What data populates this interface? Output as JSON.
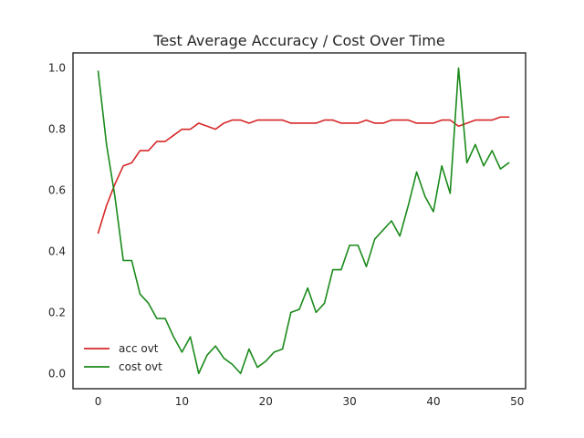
{
  "chart_data": {
    "type": "line",
    "title": "Test Average Accuracy / Cost Over Time",
    "xlabel": "",
    "ylabel": "",
    "xlim": [
      -3,
      51
    ],
    "ylim": [
      -0.05,
      1.05
    ],
    "xticks": [
      0,
      10,
      20,
      30,
      40,
      50
    ],
    "yticks": [
      0.0,
      0.2,
      0.4,
      0.6,
      0.8,
      1.0
    ],
    "grid": false,
    "legend": "lower-left",
    "x": [
      0,
      1,
      2,
      3,
      4,
      5,
      6,
      7,
      8,
      9,
      10,
      11,
      12,
      13,
      14,
      15,
      16,
      17,
      18,
      19,
      20,
      21,
      22,
      23,
      24,
      25,
      26,
      27,
      28,
      29,
      30,
      31,
      32,
      33,
      34,
      35,
      36,
      37,
      38,
      39,
      40,
      41,
      42,
      43,
      44,
      45,
      46,
      47,
      48,
      49
    ],
    "series": [
      {
        "name": "acc ovt",
        "color": "#d62728",
        "values": [
          0.46,
          0.55,
          0.62,
          0.68,
          0.69,
          0.73,
          0.73,
          0.76,
          0.76,
          0.78,
          0.8,
          0.8,
          0.82,
          0.81,
          0.8,
          0.82,
          0.83,
          0.83,
          0.82,
          0.83,
          0.83,
          0.83,
          0.83,
          0.82,
          0.82,
          0.82,
          0.82,
          0.83,
          0.83,
          0.82,
          0.82,
          0.82,
          0.83,
          0.82,
          0.82,
          0.83,
          0.83,
          0.83,
          0.82,
          0.82,
          0.82,
          0.83,
          0.83,
          0.81,
          0.82,
          0.83,
          0.83,
          0.83,
          0.84,
          0.84
        ]
      },
      {
        "name": "cost ovt",
        "color": "#1a8a1a",
        "values": [
          0.99,
          0.75,
          0.58,
          0.37,
          0.37,
          0.26,
          0.23,
          0.18,
          0.18,
          0.12,
          0.07,
          0.12,
          0.0,
          0.06,
          0.09,
          0.05,
          0.03,
          0.0,
          0.08,
          0.02,
          0.04,
          0.07,
          0.08,
          0.2,
          0.21,
          0.28,
          0.2,
          0.23,
          0.34,
          0.34,
          0.42,
          0.42,
          0.35,
          0.44,
          0.47,
          0.5,
          0.45,
          0.55,
          0.66,
          0.58,
          0.53,
          0.68,
          0.59,
          1.0,
          0.69,
          0.75,
          0.68,
          0.73,
          0.67,
          0.69
        ]
      }
    ]
  }
}
